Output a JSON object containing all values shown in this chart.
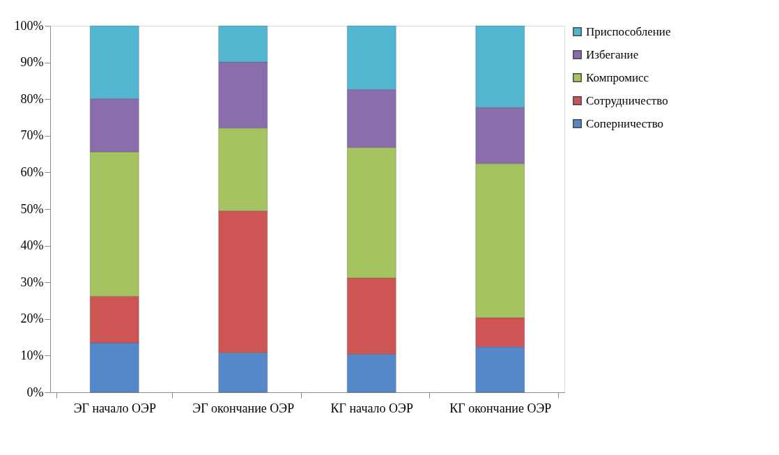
{
  "chart_data": {
    "type": "bar",
    "stacked": true,
    "categories": [
      "ЭГ начало ОЭР",
      "ЭГ окончание ОЭР",
      "КГ начало ОЭР",
      "КГ окончание ОЭР"
    ],
    "series": [
      {
        "name": "Соперничество",
        "color": "#5588c8",
        "values": [
          13.5,
          10.8,
          10.4,
          12.4
        ]
      },
      {
        "name": "Сотрудничество",
        "color": "#cd5553",
        "values": [
          12.7,
          38.7,
          20.8,
          8.0
        ]
      },
      {
        "name": "Компромисс",
        "color": "#a6c361",
        "values": [
          39.4,
          22.6,
          35.6,
          42.0
        ]
      },
      {
        "name": "Избегание",
        "color": "#8a6dad",
        "values": [
          14.5,
          18.0,
          15.8,
          15.3
        ]
      },
      {
        "name": "Приспособление",
        "color": "#52b6d0",
        "values": [
          19.9,
          9.9,
          17.4,
          22.3
        ]
      }
    ],
    "ylim": [
      0,
      100
    ],
    "yticks": [
      {
        "value": 0,
        "label": "0%"
      },
      {
        "value": 10,
        "label": "10%"
      },
      {
        "value": 20,
        "label": "20%"
      },
      {
        "value": 30,
        "label": "30%"
      },
      {
        "value": 40,
        "label": "40%"
      },
      {
        "value": 50,
        "label": "50%"
      },
      {
        "value": 60,
        "label": "60%"
      },
      {
        "value": 70,
        "label": "70%"
      },
      {
        "value": 80,
        "label": "80%"
      },
      {
        "value": 90,
        "label": "90%"
      },
      {
        "value": 100,
        "label": "100%"
      }
    ],
    "grid": false,
    "legend": "right"
  }
}
